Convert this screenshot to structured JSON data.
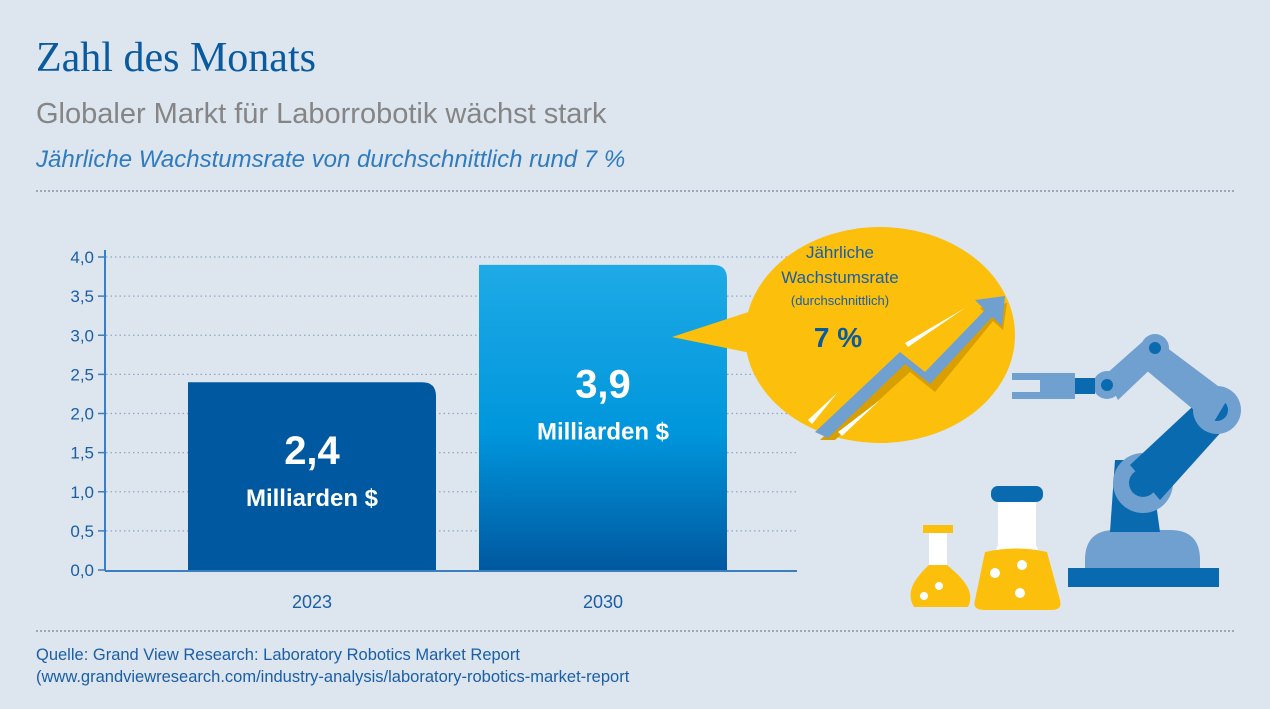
{
  "header": {
    "title": "Zahl des Monats",
    "subtitle": "Globaler Markt für Laborrobotik wächst stark",
    "subtitle2": "Jährliche Wachstumsrate von durchschnittlich rund 7 %"
  },
  "chart_data": {
    "type": "bar",
    "categories": [
      "2023",
      "2030"
    ],
    "values": [
      2.4,
      3.9
    ],
    "data_labels": [
      {
        "value": "2,4",
        "unit": "Milliarden $"
      },
      {
        "value": "3,9",
        "unit": "Milliarden $"
      }
    ],
    "ylim": [
      0,
      4.0
    ],
    "yticks": [
      "0,0",
      "0,5",
      "1,0",
      "1,5",
      "2,0",
      "2,5",
      "3,0",
      "3,5",
      "4,0"
    ],
    "grid": true,
    "colors": [
      "#0058a0",
      "#10a0e0"
    ],
    "annotation": {
      "line1": "Jährliche",
      "line2": "Wachstumsrate",
      "line3": "(durchschnittlich)",
      "value": "7 %",
      "color": "#fbbf0c"
    }
  },
  "footer": {
    "source_line1": "Quelle: Grand View Research: Laboratory Robotics Market Report",
    "source_line2": "(www.grandviewresearch.com/industry-analysis/laboratory-robotics-market-report"
  }
}
